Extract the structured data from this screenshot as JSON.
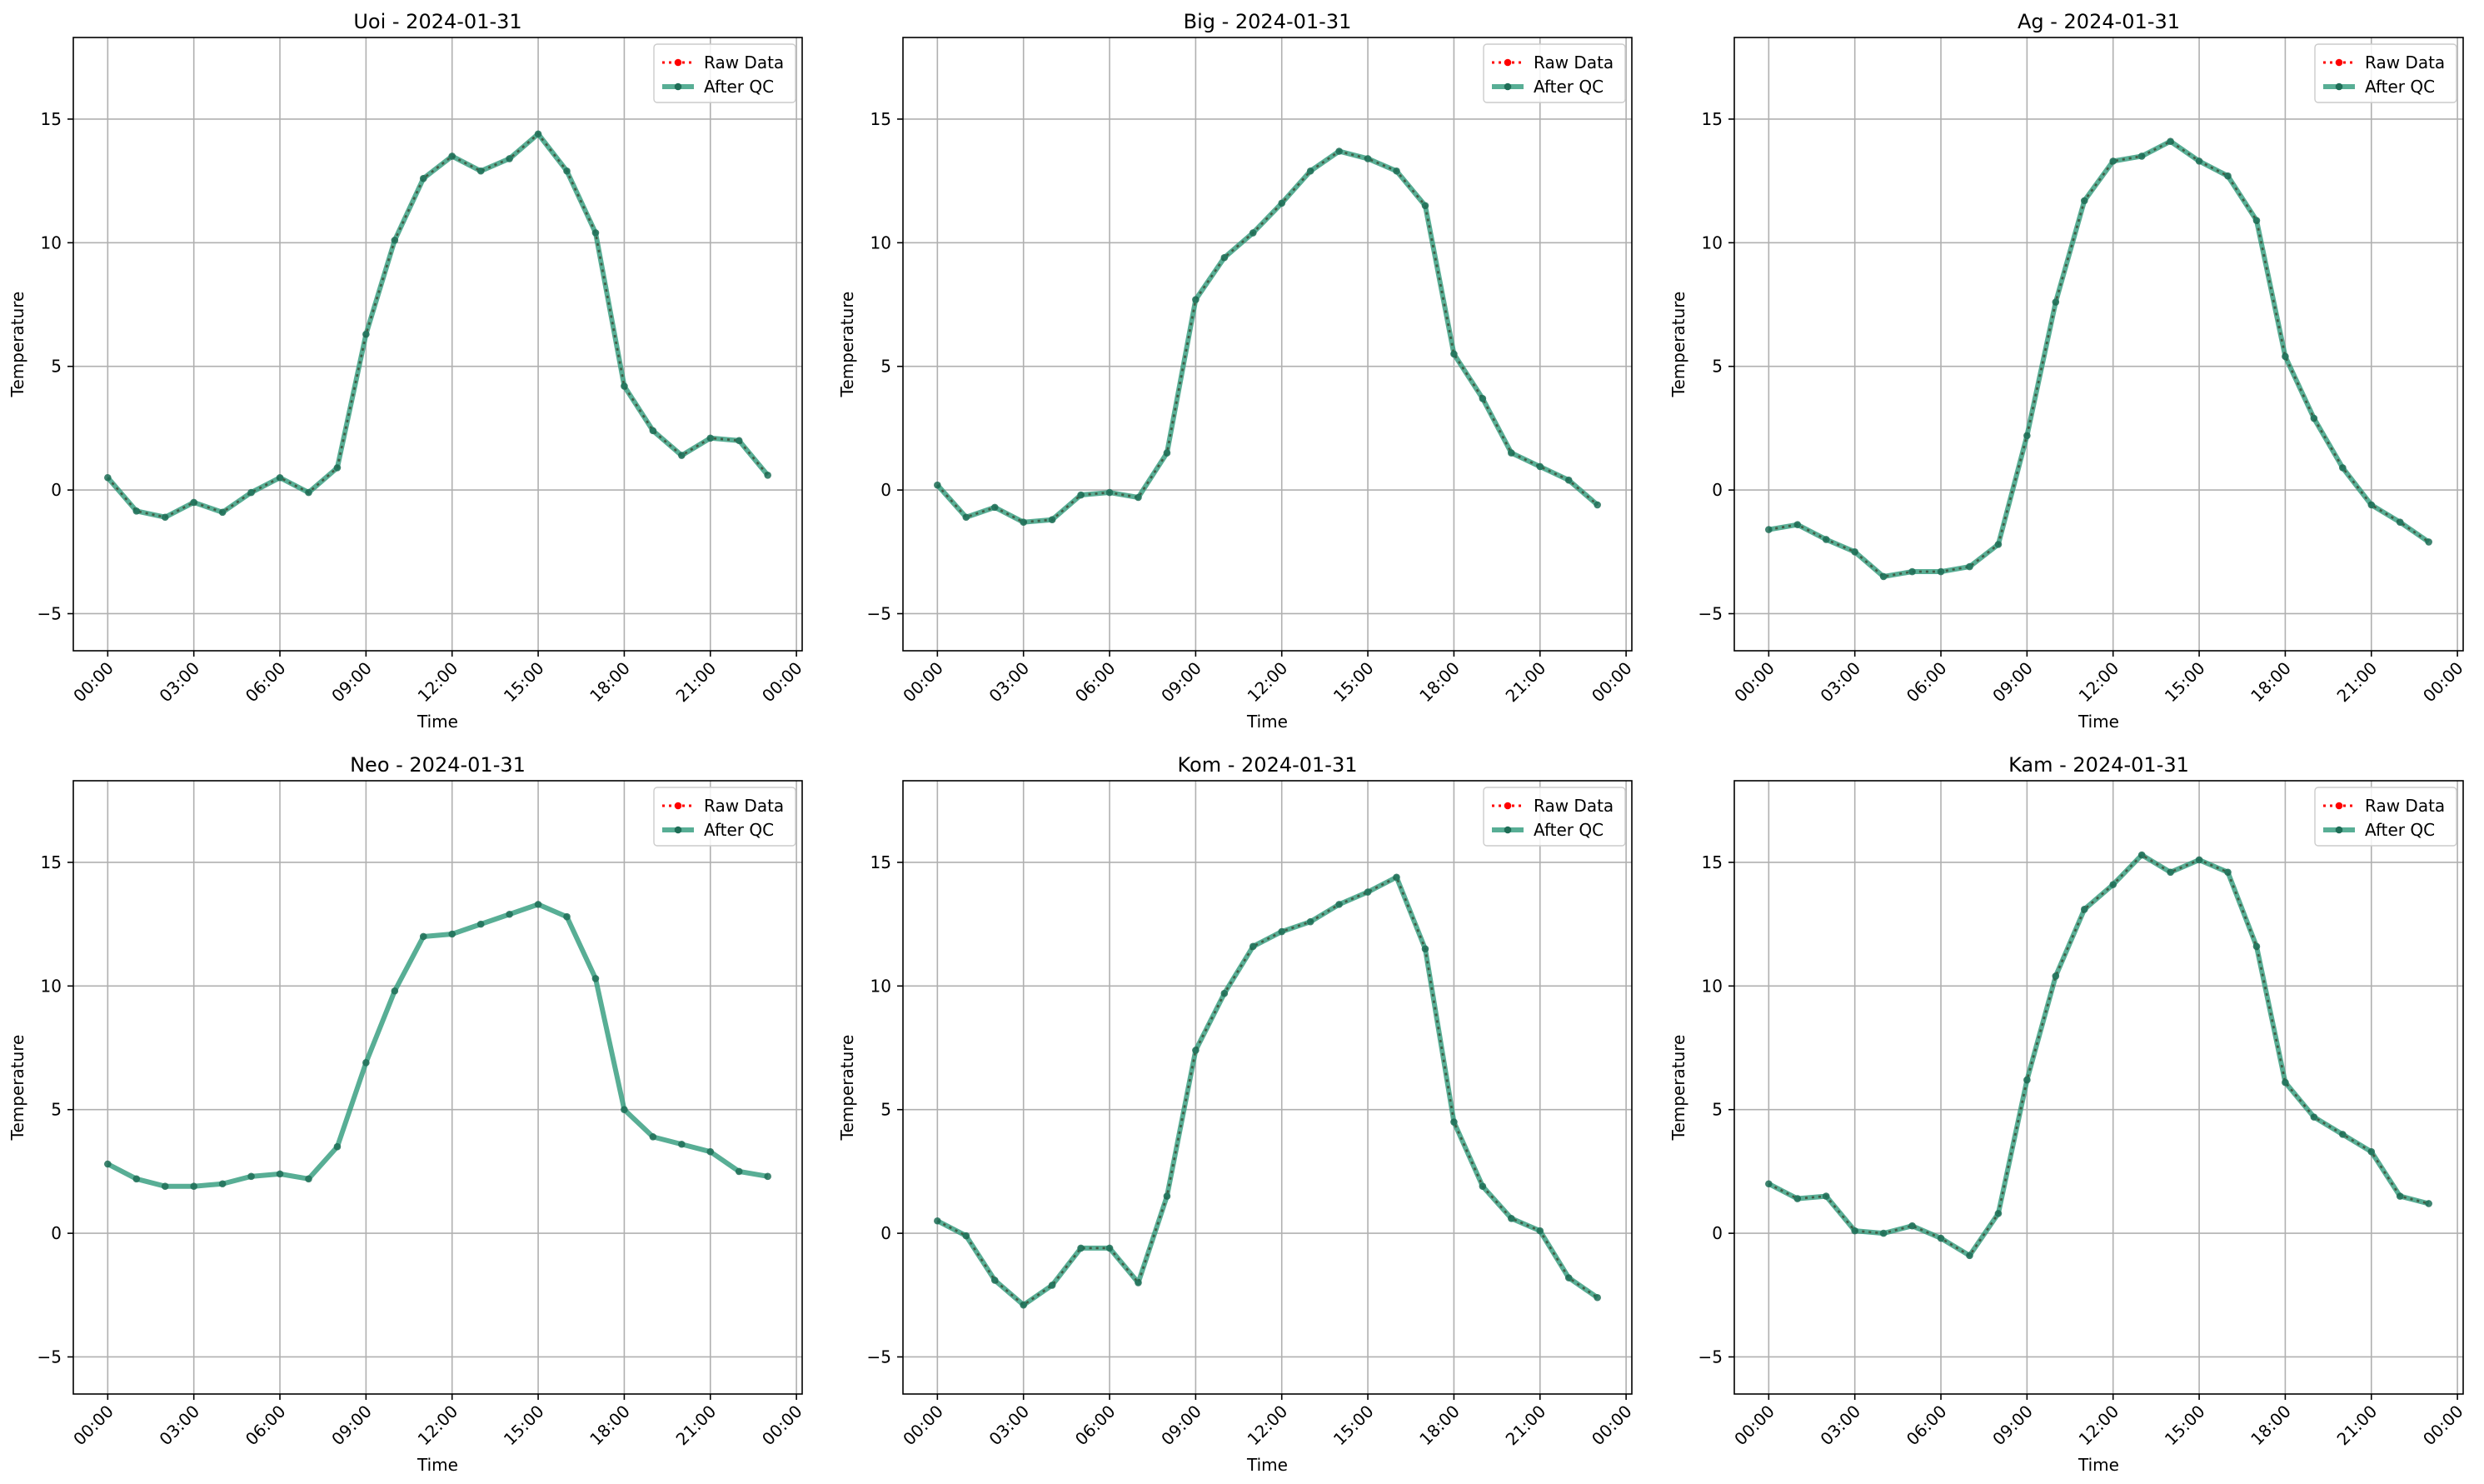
{
  "figure": {
    "type": "line",
    "ylabel": "Temperature",
    "xlabel": "Time",
    "xticks": [
      "00:00",
      "03:00",
      "06:00",
      "09:00",
      "12:00",
      "15:00",
      "18:00",
      "21:00",
      "00:00"
    ],
    "yticks": [
      "−5",
      "0",
      "5",
      "10",
      "15"
    ],
    "legend": [
      "Raw Data",
      "After QC"
    ],
    "legend_location": "top-right",
    "colors": {
      "raw": "#ff0000",
      "qc": "#2e9a7a",
      "qc_marker": "#1f6e57",
      "grid": "#b0b0b0"
    }
  },
  "chart_data": [
    {
      "type": "line",
      "title": "Uoi - 2024-01-31",
      "xlabel": "Time",
      "ylabel": "Temperature",
      "x_unit": "hour",
      "x": [
        0,
        1,
        2,
        3,
        4,
        5,
        6,
        7,
        8,
        9,
        10,
        11,
        12,
        13,
        14,
        15,
        16,
        17,
        18,
        19,
        20,
        21,
        22,
        23
      ],
      "xlim": [
        -1.2,
        24.2
      ],
      "ylim": [
        -6.5,
        18.3
      ],
      "grid": true,
      "legend_location": "top-right",
      "series": [
        {
          "name": "Raw Data",
          "values": [
            0.5,
            -0.85,
            -1.1,
            -0.5,
            -0.9,
            -0.1,
            0.5,
            -0.1,
            0.9,
            6.3,
            10.1,
            12.6,
            13.5,
            12.9,
            13.4,
            14.4,
            12.9,
            10.4,
            4.2,
            2.4,
            1.4,
            2.1,
            2.0,
            0.6
          ]
        },
        {
          "name": "After QC",
          "values": [
            0.5,
            -0.85,
            -1.1,
            -0.5,
            -0.9,
            -0.1,
            0.5,
            -0.1,
            0.9,
            6.3,
            10.1,
            12.6,
            13.5,
            12.9,
            13.4,
            14.4,
            12.9,
            10.4,
            4.2,
            2.4,
            1.4,
            2.1,
            2.0,
            0.6
          ]
        }
      ]
    },
    {
      "type": "line",
      "title": "Big - 2024-01-31",
      "xlabel": "Time",
      "ylabel": "Temperature",
      "x_unit": "hour",
      "x": [
        0,
        1,
        2,
        3,
        4,
        5,
        6,
        7,
        8,
        9,
        10,
        11,
        12,
        13,
        14,
        15,
        16,
        17,
        18,
        19,
        20,
        21,
        22,
        23
      ],
      "xlim": [
        -1.2,
        24.2
      ],
      "ylim": [
        -6.5,
        18.3
      ],
      "grid": true,
      "legend_location": "top-right",
      "series": [
        {
          "name": "Raw Data",
          "values": [
            0.2,
            -1.1,
            -0.7,
            -1.3,
            -1.2,
            -0.2,
            -0.1,
            -0.3,
            1.5,
            7.7,
            9.4,
            10.4,
            11.6,
            12.9,
            13.7,
            13.4,
            12.9,
            11.5,
            5.5,
            3.7,
            1.5,
            0.95,
            0.4,
            -0.6
          ]
        },
        {
          "name": "After QC",
          "values": [
            0.2,
            -1.1,
            -0.7,
            -1.3,
            -1.2,
            -0.2,
            -0.1,
            -0.3,
            1.5,
            7.7,
            9.4,
            10.4,
            11.6,
            12.9,
            13.7,
            13.4,
            12.9,
            11.5,
            5.5,
            3.7,
            1.5,
            0.95,
            0.4,
            -0.6
          ]
        }
      ]
    },
    {
      "type": "line",
      "title": "Ag - 2024-01-31",
      "xlabel": "Time",
      "ylabel": "Temperature",
      "x_unit": "hour",
      "x": [
        0,
        1,
        2,
        3,
        4,
        5,
        6,
        7,
        8,
        9,
        10,
        11,
        12,
        13,
        14,
        15,
        16,
        17,
        18,
        19,
        20,
        21,
        22,
        23
      ],
      "xlim": [
        -1.2,
        24.2
      ],
      "ylim": [
        -6.5,
        18.3
      ],
      "grid": true,
      "legend_location": "top-right",
      "series": [
        {
          "name": "Raw Data",
          "values": [
            -1.6,
            -1.4,
            -2.0,
            -2.5,
            -3.5,
            -3.3,
            -3.3,
            -3.1,
            -2.2,
            2.2,
            7.6,
            11.7,
            13.3,
            13.5,
            14.1,
            13.3,
            12.7,
            10.9,
            5.4,
            2.9,
            0.9,
            -0.6,
            -1.3,
            -2.1
          ]
        },
        {
          "name": "After QC",
          "values": [
            -1.6,
            -1.4,
            -2.0,
            -2.5,
            -3.5,
            -3.3,
            -3.3,
            -3.1,
            -2.2,
            2.2,
            7.6,
            11.7,
            13.3,
            13.5,
            14.1,
            13.3,
            12.7,
            10.9,
            5.4,
            2.9,
            0.9,
            -0.6,
            -1.3,
            -2.1
          ]
        }
      ]
    },
    {
      "type": "line",
      "title": "Neo - 2024-01-31",
      "xlabel": "Time",
      "ylabel": "Temperature",
      "x_unit": "hour",
      "x": [
        0,
        1,
        2,
        3,
        4,
        5,
        6,
        7,
        8,
        9,
        10,
        11,
        12,
        13,
        14,
        15,
        16,
        17,
        18,
        19,
        20,
        21,
        22,
        23
      ],
      "xlim": [
        -1.2,
        24.2
      ],
      "ylim": [
        -6.5,
        18.3
      ],
      "grid": true,
      "legend_location": "top-right",
      "series": [
        {
          "name": "Raw Data",
          "values": [
            2.8,
            2.2,
            1.9,
            1.9,
            2.0,
            2.3,
            2.4,
            2.2,
            3.5,
            6.9,
            9.8,
            12.0,
            12.1,
            12.5,
            12.9,
            13.3,
            12.8,
            10.3,
            5.0,
            3.9,
            3.6,
            3.3,
            2.5,
            2.3
          ]
        },
        {
          "name": "After QC",
          "values": [
            2.8,
            2.2,
            1.9,
            1.9,
            2.0,
            2.3,
            2.4,
            2.2,
            3.5,
            6.9,
            9.8,
            12.0,
            12.1,
            12.5,
            12.9,
            13.3,
            12.8,
            10.3,
            5.0,
            3.9,
            3.6,
            3.3,
            2.5,
            2.3
          ]
        }
      ]
    },
    {
      "type": "line",
      "title": "Kom - 2024-01-31",
      "xlabel": "Time",
      "ylabel": "Temperature",
      "x_unit": "hour",
      "x": [
        0,
        1,
        2,
        3,
        4,
        5,
        6,
        7,
        8,
        9,
        10,
        11,
        12,
        13,
        14,
        15,
        16,
        17,
        18,
        19,
        20,
        21,
        22,
        23
      ],
      "xlim": [
        -1.2,
        24.2
      ],
      "ylim": [
        -6.5,
        18.3
      ],
      "grid": true,
      "legend_location": "top-right",
      "series": [
        {
          "name": "Raw Data",
          "values": [
            0.5,
            -0.1,
            -1.9,
            -2.9,
            -2.1,
            -0.6,
            -0.6,
            -2.0,
            1.5,
            7.4,
            9.7,
            11.6,
            12.2,
            12.6,
            13.3,
            13.8,
            14.4,
            11.5,
            4.5,
            1.9,
            0.6,
            0.1,
            -1.8,
            -2.6
          ]
        },
        {
          "name": "After QC",
          "values": [
            0.5,
            -0.1,
            -1.9,
            -2.9,
            -2.1,
            -0.6,
            -0.6,
            -2.0,
            1.5,
            7.4,
            9.7,
            11.6,
            12.2,
            12.6,
            13.3,
            13.8,
            14.4,
            11.5,
            4.5,
            1.9,
            0.6,
            0.1,
            -1.8,
            -2.6
          ]
        }
      ]
    },
    {
      "type": "line",
      "title": "Kam - 2024-01-31",
      "xlabel": "Time",
      "ylabel": "Temperature",
      "x_unit": "hour",
      "x": [
        0,
        1,
        2,
        3,
        4,
        5,
        6,
        7,
        8,
        9,
        10,
        11,
        12,
        13,
        14,
        15,
        16,
        17,
        18,
        19,
        20,
        21,
        22,
        23
      ],
      "xlim": [
        -1.2,
        24.2
      ],
      "ylim": [
        -6.5,
        18.3
      ],
      "grid": true,
      "legend_location": "top-right",
      "series": [
        {
          "name": "Raw Data",
          "values": [
            2.0,
            1.4,
            1.5,
            0.1,
            0.0,
            0.3,
            -0.2,
            -0.9,
            0.8,
            6.2,
            10.4,
            13.1,
            14.1,
            15.3,
            14.6,
            15.1,
            14.6,
            11.6,
            6.1,
            4.7,
            4.0,
            3.3,
            1.5,
            1.2
          ]
        },
        {
          "name": "After QC",
          "values": [
            2.0,
            1.4,
            1.5,
            0.1,
            0.0,
            0.3,
            -0.2,
            -0.9,
            0.8,
            6.2,
            10.4,
            13.1,
            14.1,
            15.3,
            14.6,
            15.1,
            14.6,
            11.6,
            6.1,
            4.7,
            4.0,
            3.3,
            1.5,
            1.2
          ]
        }
      ]
    }
  ]
}
